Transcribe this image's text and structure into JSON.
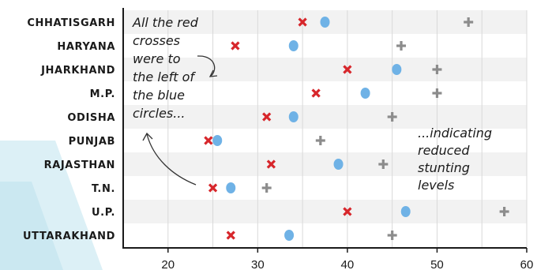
{
  "colors": {
    "red_cross": "#d7262b",
    "blue_circle": "#6fb2e6",
    "grey_plus": "#8c8c8c",
    "row_shade": "#f2f2f2",
    "grid": "#d9d9d9",
    "axis": "#1a1a1a",
    "swoosh": "#bfe3ef"
  },
  "chart_data": {
    "type": "scatter",
    "title": "",
    "xlabel": "",
    "ylabel": "",
    "xlim": [
      15,
      60
    ],
    "xticks": [
      "20",
      "30",
      "40",
      "50",
      "60"
    ],
    "xtick_values": [
      20,
      30,
      40,
      50,
      60
    ],
    "grid": "vertical every 5 units; alternate rows shaded",
    "categories": [
      "CHHATISGARH",
      "HARYANA",
      "JHARKHAND",
      "M.P.",
      "ODISHA",
      "PUNJAB",
      "RAJASTHAN",
      "T.N.",
      "U.P.",
      "UTTARAKHAND"
    ],
    "series": [
      {
        "marker": "red-cross",
        "values": [
          35,
          27.5,
          40,
          36.5,
          31,
          24.5,
          31.5,
          25,
          40,
          27
        ]
      },
      {
        "marker": "blue-circle",
        "values": [
          37.5,
          34,
          45.5,
          42,
          34,
          25.5,
          39,
          27,
          46.5,
          33.5
        ]
      },
      {
        "marker": "grey-plus",
        "values": [
          53.5,
          46,
          50,
          50,
          45,
          37,
          44,
          31,
          57.5,
          45
        ]
      }
    ],
    "annotations": [
      {
        "text_lines": [
          "All the red",
          "crosses",
          "were to",
          "the left of",
          "the blue",
          "circles..."
        ]
      },
      {
        "text_lines": [
          "...indicating",
          "reduced",
          "stunting",
          "levels"
        ]
      }
    ]
  }
}
